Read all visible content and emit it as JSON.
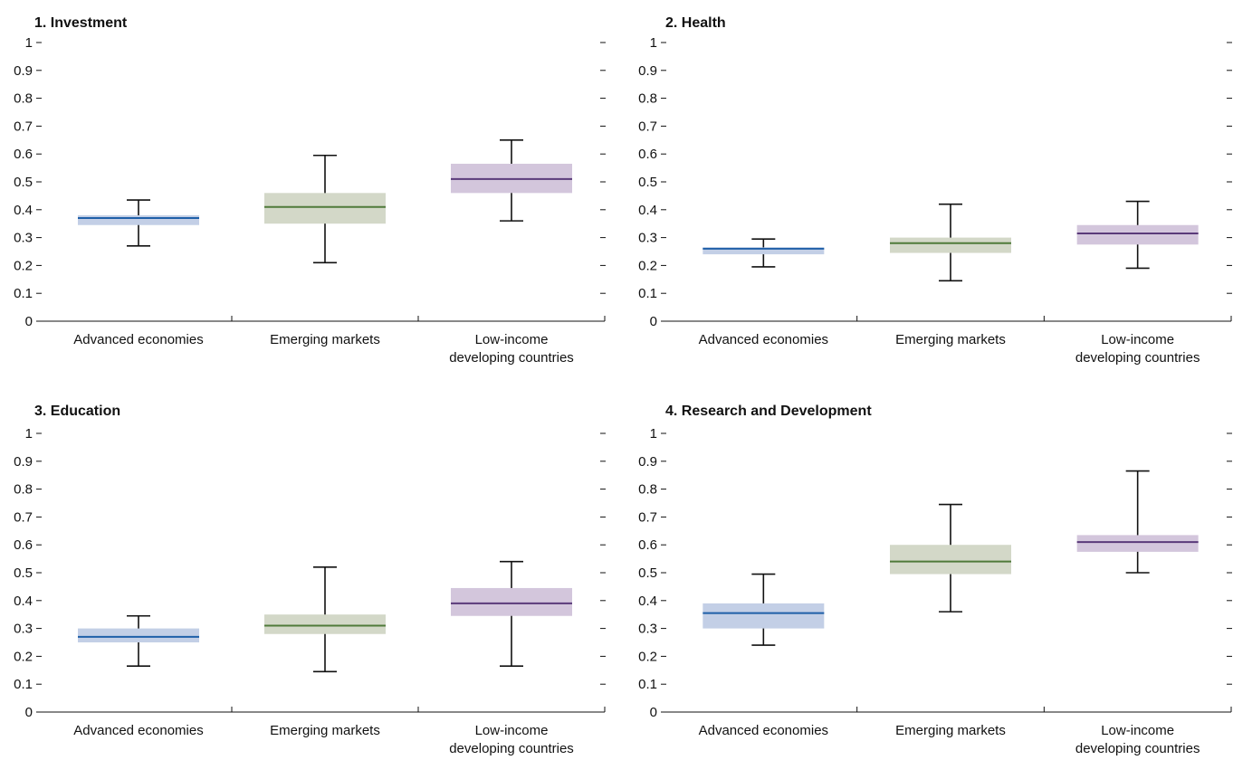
{
  "colors": {
    "advanced_box": "#c3cfe6",
    "advanced_median": "#1f5fa8",
    "emerging_box": "#d3d8c8",
    "emerging_median": "#4f7a3a",
    "lowincome_box": "#d3c6dc",
    "lowincome_median": "#5a3a7a",
    "whisker": "#111111",
    "axis": "#111111"
  },
  "chart_data": [
    {
      "type": "box",
      "title": "1. Investment",
      "ylim": [
        0,
        1
      ],
      "yticks": [
        "0",
        "0.1",
        "0.2",
        "0.3",
        "0.4",
        "0.5",
        "0.6",
        "0.7",
        "0.8",
        "0.9",
        "1"
      ],
      "categories": [
        [
          "Advanced economies"
        ],
        [
          "Emerging markets"
        ],
        [
          "Low-income",
          "developing countries"
        ]
      ],
      "series": [
        {
          "min": 0.27,
          "q1": 0.345,
          "median": 0.37,
          "q3": 0.38,
          "max": 0.435
        },
        {
          "min": 0.21,
          "q1": 0.35,
          "median": 0.41,
          "q3": 0.46,
          "max": 0.595
        },
        {
          "min": 0.36,
          "q1": 0.46,
          "median": 0.51,
          "q3": 0.565,
          "max": 0.65
        }
      ]
    },
    {
      "type": "box",
      "title": "2. Health",
      "ylim": [
        0,
        1
      ],
      "yticks": [
        "0",
        "0.1",
        "0.2",
        "0.3",
        "0.4",
        "0.5",
        "0.6",
        "0.7",
        "0.8",
        "0.9",
        "1"
      ],
      "categories": [
        [
          "Advanced economies"
        ],
        [
          "Emerging markets"
        ],
        [
          "Low-income",
          "developing countries"
        ]
      ],
      "series": [
        {
          "min": 0.195,
          "q1": 0.24,
          "median": 0.26,
          "q3": 0.265,
          "max": 0.295
        },
        {
          "min": 0.145,
          "q1": 0.245,
          "median": 0.28,
          "q3": 0.3,
          "max": 0.42
        },
        {
          "min": 0.19,
          "q1": 0.275,
          "median": 0.315,
          "q3": 0.345,
          "max": 0.43
        }
      ]
    },
    {
      "type": "box",
      "title": "3. Education",
      "ylim": [
        0,
        1
      ],
      "yticks": [
        "0",
        "0.1",
        "0.2",
        "0.3",
        "0.4",
        "0.5",
        "0.6",
        "0.7",
        "0.8",
        "0.9",
        "1"
      ],
      "categories": [
        [
          "Advanced economies"
        ],
        [
          "Emerging markets"
        ],
        [
          "Low-income",
          "developing countries"
        ]
      ],
      "series": [
        {
          "min": 0.165,
          "q1": 0.25,
          "median": 0.27,
          "q3": 0.3,
          "max": 0.345
        },
        {
          "min": 0.145,
          "q1": 0.28,
          "median": 0.31,
          "q3": 0.35,
          "max": 0.52
        },
        {
          "min": 0.165,
          "q1": 0.345,
          "median": 0.39,
          "q3": 0.445,
          "max": 0.54
        }
      ]
    },
    {
      "type": "box",
      "title": "4. Research and Development",
      "ylim": [
        0,
        1
      ],
      "yticks": [
        "0",
        "0.1",
        "0.2",
        "0.3",
        "0.4",
        "0.5",
        "0.6",
        "0.7",
        "0.8",
        "0.9",
        "1"
      ],
      "categories": [
        [
          "Advanced economies"
        ],
        [
          "Emerging markets"
        ],
        [
          "Low-income",
          "developing countries"
        ]
      ],
      "series": [
        {
          "min": 0.24,
          "q1": 0.3,
          "median": 0.355,
          "q3": 0.39,
          "max": 0.495
        },
        {
          "min": 0.36,
          "q1": 0.495,
          "median": 0.54,
          "q3": 0.6,
          "max": 0.745
        },
        {
          "min": 0.5,
          "q1": 0.575,
          "median": 0.61,
          "q3": 0.635,
          "max": 0.865
        }
      ]
    }
  ]
}
